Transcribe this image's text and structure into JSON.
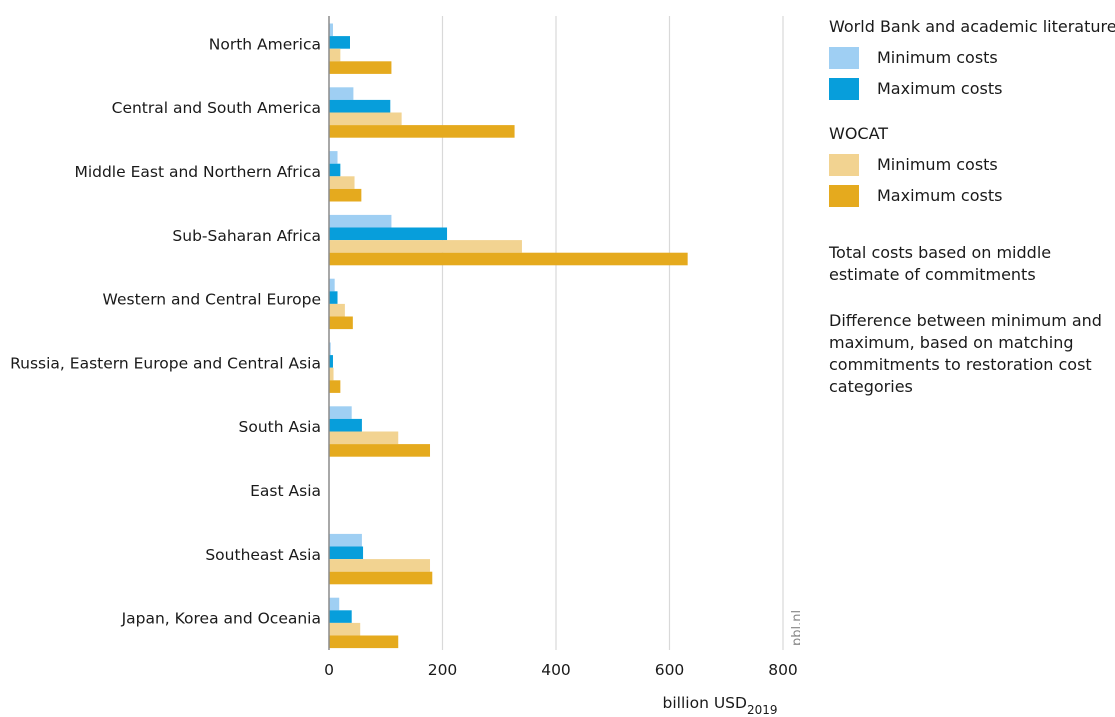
{
  "chart_data": {
    "type": "bar",
    "orientation": "horizontal",
    "categories": [
      "North America",
      "Central and South America",
      "Middle East and Northern Africa",
      "Sub-Saharan Africa",
      "Western and Central Europe",
      "Russia, Eastern Europe and Central Asia",
      "South Asia",
      "East Asia",
      "Southeast Asia",
      "Japan, Korea and Oceania"
    ],
    "series": [
      {
        "name": "Minimum costs",
        "group": "World Bank and academic literature",
        "color": "#9fcff3",
        "values": [
          7,
          43,
          15,
          110,
          10,
          3,
          40,
          0,
          58,
          18
        ]
      },
      {
        "name": "Maximum costs",
        "group": "World Bank and academic literature",
        "color": "#079edb",
        "values": [
          37,
          108,
          20,
          208,
          15,
          7,
          58,
          0,
          60,
          40
        ]
      },
      {
        "name": "Minimum costs",
        "group": "WOCAT",
        "color": "#f2d391",
        "values": [
          20,
          128,
          45,
          340,
          28,
          8,
          122,
          0,
          178,
          55
        ]
      },
      {
        "name": "Maximum costs",
        "group": "WOCAT",
        "color": "#e5aa1e",
        "values": [
          110,
          327,
          57,
          632,
          42,
          20,
          178,
          0,
          182,
          122
        ]
      }
    ],
    "xlabel": "billion USD",
    "xlabel_sub": "2019",
    "xlim": [
      0,
      800
    ],
    "xticks": [
      "0",
      "200",
      "400",
      "600",
      "800"
    ],
    "grid": "vertical",
    "legend_position": "right",
    "source": "pbl.nl"
  },
  "legend": {
    "group1_title": "World Bank and academic literature",
    "group1_min": "Minimum costs",
    "group1_max": "Maximum costs",
    "group2_title": "WOCAT",
    "group2_min": "Minimum costs",
    "group2_max": "Maximum costs",
    "note1": "Total costs based on middle estimate of commitments",
    "note2": "Difference between minimum and maximum, based on matching commitments to restoration cost categories"
  }
}
